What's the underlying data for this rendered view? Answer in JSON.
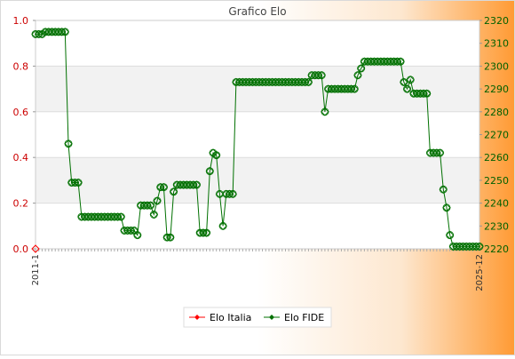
{
  "chart_data": {
    "type": "line",
    "title": "Grafico Elo",
    "left_axis": {
      "ylim": [
        0,
        1
      ],
      "ticks": [
        "0.0",
        "0.2",
        "0.4",
        "0.6",
        "0.8",
        "1.0"
      ]
    },
    "right_axis": {
      "ylim": [
        2220,
        2320
      ],
      "ticks": [
        "2220",
        "2230",
        "2240",
        "2250",
        "2260",
        "2270",
        "2280",
        "2290",
        "2300",
        "2310",
        "2320"
      ]
    },
    "x_tick_first": "2011-1",
    "x_tick_last": "2025-12",
    "legend_placement": "bottom-center",
    "grid": true,
    "colors": {
      "italia": "#ff0000",
      "fide": "#007000"
    },
    "series": [
      {
        "name": "Elo Italia",
        "axis": "left",
        "values": [
          0
        ]
      },
      {
        "name": "Elo FIDE",
        "axis": "right",
        "values": [
          2314,
          2314,
          2314,
          2315,
          2315,
          2315,
          2315,
          2315,
          2315,
          2315,
          2266,
          2249,
          2249,
          2249,
          2234,
          2234,
          2234,
          2234,
          2234,
          2234,
          2234,
          2234,
          2234,
          2234,
          2234,
          2234,
          2234,
          2228,
          2228,
          2228,
          2228,
          2226,
          2239,
          2239,
          2239,
          2239,
          2235,
          2241,
          2247,
          2247,
          2225,
          2225,
          2245,
          2248,
          2248,
          2248,
          2248,
          2248,
          2248,
          2248,
          2227,
          2227,
          2227,
          2254,
          2262,
          2261,
          2244,
          2230,
          2244,
          2244,
          2244,
          2293,
          2293,
          2293,
          2293,
          2293,
          2293,
          2293,
          2293,
          2293,
          2293,
          2293,
          2293,
          2293,
          2293,
          2293,
          2293,
          2293,
          2293,
          2293,
          2293,
          2293,
          2293,
          2293,
          2296,
          2296,
          2296,
          2296,
          2280,
          2290,
          2290,
          2290,
          2290,
          2290,
          2290,
          2290,
          2290,
          2290,
          2296,
          2299,
          2302,
          2302,
          2302,
          2302,
          2302,
          2302,
          2302,
          2302,
          2302,
          2302,
          2302,
          2302,
          2293,
          2290,
          2294,
          2288,
          2288,
          2288,
          2288,
          2288,
          2262,
          2262,
          2262,
          2262,
          2246,
          2238,
          2226,
          2221,
          2221,
          2221,
          2221,
          2221,
          2221,
          2221,
          2221,
          2221
        ]
      }
    ]
  }
}
